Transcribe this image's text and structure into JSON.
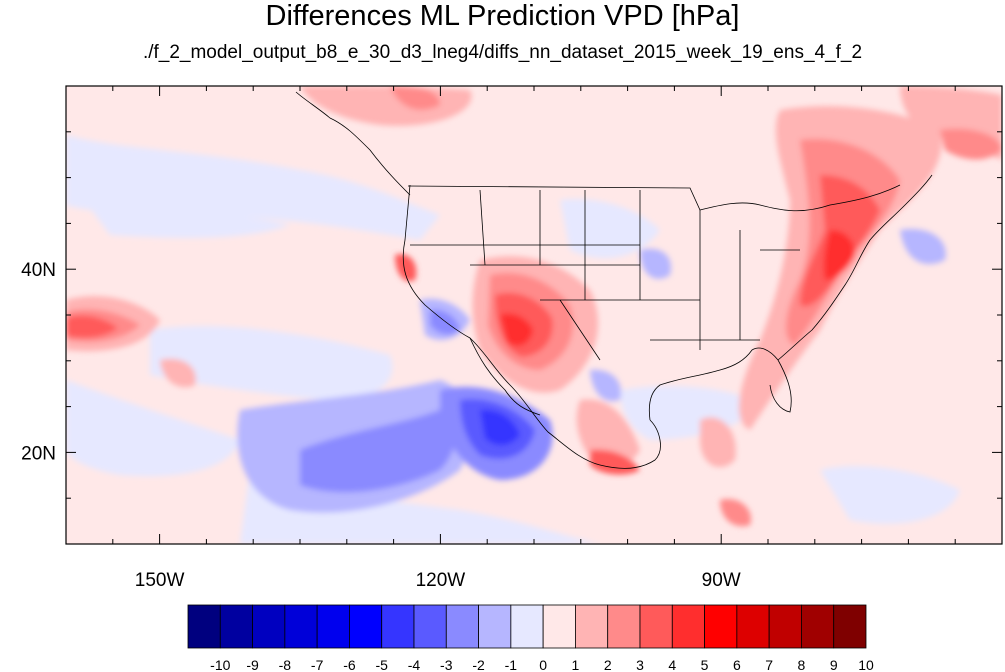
{
  "title": "Differences ML Prediction VPD [hPa]",
  "subtitle": "./f_2_model_output_b8_e_30_d3_lneg4/diffs_nn_dataset_2015_week_19_ens_4_f_2",
  "map": {
    "lon_range": [
      -160,
      -60
    ],
    "lat_range": [
      10,
      60
    ],
    "x_ticks": [
      {
        "value": -150,
        "label": "150W"
      },
      {
        "value": -120,
        "label": "120W"
      },
      {
        "value": -90,
        "label": "90W"
      }
    ],
    "y_ticks": [
      {
        "value": 20,
        "label": "20N"
      },
      {
        "value": 40,
        "label": "40N"
      }
    ]
  },
  "colorbar": {
    "labels": [
      "-10",
      "-9",
      "-8",
      "-7",
      "-6",
      "-5",
      "-4",
      "-3",
      "-2",
      "-1",
      "0",
      "1",
      "2",
      "3",
      "4",
      "5",
      "6",
      "7",
      "8",
      "9",
      "10"
    ],
    "colors": [
      "#00007f",
      "#0000a0",
      "#0000c0",
      "#0000d9",
      "#0000ee",
      "#0000ff",
      "#3535ff",
      "#5a5aff",
      "#8a8aff",
      "#b6b6ff",
      "#e6e8ff",
      "#ffe8e8",
      "#ffb4b4",
      "#ff8a8a",
      "#ff5a5a",
      "#ff2e2e",
      "#ff0000",
      "#dd0000",
      "#c00000",
      "#a00000",
      "#7f0000"
    ]
  }
}
